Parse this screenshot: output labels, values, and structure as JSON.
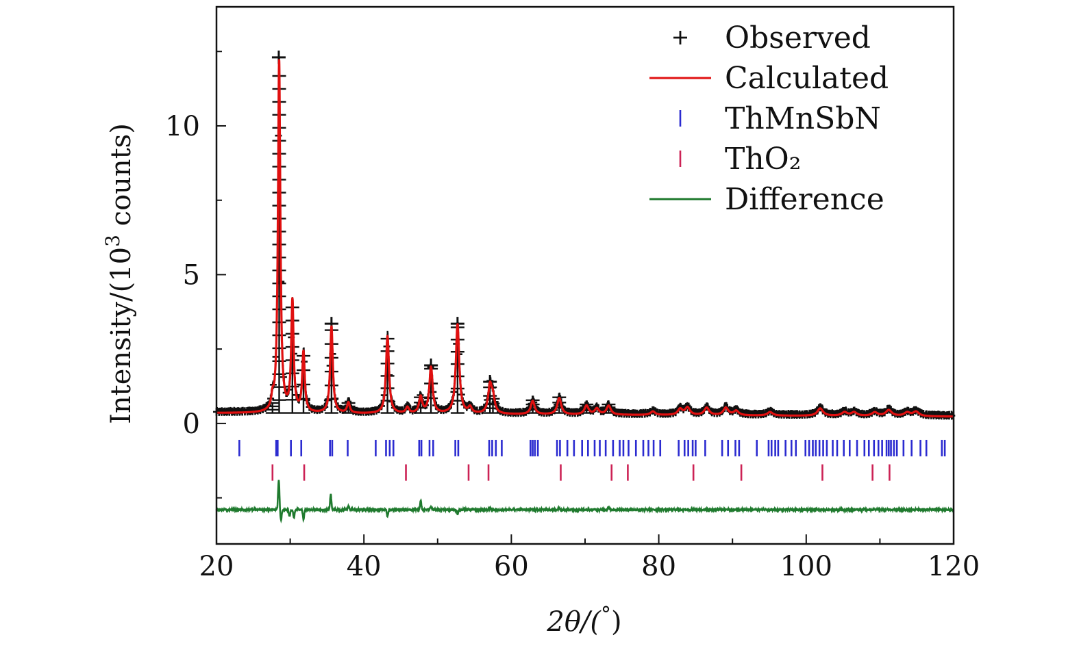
{
  "chart_data": {
    "type": "line",
    "title": "",
    "xlabel": {
      "main": "2θ/(",
      "unit": "°",
      "close": ")"
    },
    "ylabel": {
      "pre": "Intensity/(10",
      "sup": "3",
      "post": " counts)"
    },
    "xlim": [
      20,
      120
    ],
    "ylim": [
      -4.05,
      14.0
    ],
    "xticks": [
      20,
      40,
      60,
      80,
      100,
      120
    ],
    "yticks": [
      0,
      5,
      10
    ],
    "xtick_labels": [
      "20",
      "40",
      "60",
      "80",
      "100",
      "120"
    ],
    "ytick_labels": [
      "0",
      "5",
      "10"
    ],
    "background": 0.35,
    "peaks": [
      {
        "x": 27.6,
        "h": 0.35
      },
      {
        "x": 28.5,
        "h": 11.8
      },
      {
        "x": 30.3,
        "h": 3.7
      },
      {
        "x": 31.8,
        "h": 2.0
      },
      {
        "x": 35.6,
        "h": 2.9
      },
      {
        "x": 37.9,
        "h": 0.35
      },
      {
        "x": 43.2,
        "h": 2.6
      },
      {
        "x": 45.9,
        "h": 0.2
      },
      {
        "x": 47.7,
        "h": 0.55
      },
      {
        "x": 49.1,
        "h": 1.55
      },
      {
        "x": 52.7,
        "h": 3.0
      },
      {
        "x": 54.4,
        "h": 0.2
      },
      {
        "x": 57.1,
        "h": 0.9
      },
      {
        "x": 57.5,
        "h": 0.5
      },
      {
        "x": 62.9,
        "h": 0.45
      },
      {
        "x": 66.5,
        "h": 0.55
      },
      {
        "x": 70.2,
        "h": 0.3
      },
      {
        "x": 71.6,
        "h": 0.2
      },
      {
        "x": 73.2,
        "h": 0.3
      },
      {
        "x": 79.2,
        "h": 0.12
      },
      {
        "x": 82.9,
        "h": 0.2
      },
      {
        "x": 83.9,
        "h": 0.25
      },
      {
        "x": 86.5,
        "h": 0.25
      },
      {
        "x": 89.1,
        "h": 0.25
      },
      {
        "x": 90.5,
        "h": 0.15
      },
      {
        "x": 95.1,
        "h": 0.12
      },
      {
        "x": 101.9,
        "h": 0.25
      },
      {
        "x": 105.2,
        "h": 0.12
      },
      {
        "x": 106.5,
        "h": 0.12
      },
      {
        "x": 109.3,
        "h": 0.12
      },
      {
        "x": 111.2,
        "h": 0.2
      },
      {
        "x": 113.7,
        "h": 0.12
      },
      {
        "x": 114.9,
        "h": 0.15
      }
    ],
    "observed_labels": [
      {
        "x": 28.45,
        "y": 12.3
      },
      {
        "x": 35.6,
        "y": 3.35
      },
      {
        "x": 52.7,
        "y": 3.35
      },
      {
        "x": 49.1,
        "y": 1.95
      },
      {
        "x": 57.1,
        "y": 1.4
      }
    ],
    "reflections": [
      {
        "name": "ThMnSbN",
        "color": "#2b2bd0",
        "y": -0.83,
        "positions": [
          23.1,
          28.1,
          28.3,
          30.1,
          31.5,
          35.4,
          35.7,
          37.8,
          41.6,
          43.0,
          43.5,
          44.0,
          47.5,
          47.8,
          48.9,
          49.4,
          52.4,
          52.8,
          57.0,
          57.4,
          57.9,
          58.7,
          62.6,
          62.9,
          63.2,
          63.6,
          66.2,
          66.6,
          67.6,
          68.5,
          69.6,
          70.4,
          71.3,
          72.0,
          72.8,
          73.8,
          74.7,
          75.2,
          75.9,
          76.9,
          77.9,
          78.6,
          79.3,
          80.2,
          82.7,
          83.5,
          84.0,
          84.6,
          85.0,
          86.3,
          88.6,
          89.4,
          90.4,
          90.9,
          93.3,
          94.9,
          95.3,
          95.8,
          96.2,
          97.2,
          98.0,
          98.6,
          99.9,
          100.4,
          100.9,
          101.3,
          101.8,
          102.3,
          102.8,
          103.6,
          104.2,
          105.1,
          105.9,
          106.9,
          107.9,
          108.5,
          109.2,
          109.8,
          110.3,
          110.9,
          111.2,
          111.5,
          111.9,
          112.3,
          113.2,
          114.3,
          115.5,
          116.3,
          118.4,
          118.8
        ]
      },
      {
        "name": "ThO₂",
        "color": "#cc2255",
        "y": -1.65,
        "positions": [
          27.6,
          31.9,
          45.7,
          54.2,
          56.9,
          66.7,
          73.6,
          75.8,
          84.7,
          91.2,
          102.2,
          109.0,
          111.3
        ]
      }
    ],
    "difference": {
      "offset": -2.9,
      "spikes": [
        {
          "x": 28.45,
          "d": 1.0
        },
        {
          "x": 28.75,
          "d": -0.35
        },
        {
          "x": 29.9,
          "d": -0.22
        },
        {
          "x": 30.5,
          "d": -0.28
        },
        {
          "x": 31.8,
          "d": -0.32
        },
        {
          "x": 35.5,
          "d": 0.52
        },
        {
          "x": 37.9,
          "d": 0.12
        },
        {
          "x": 43.2,
          "d": -0.22
        },
        {
          "x": 47.7,
          "d": 0.3
        },
        {
          "x": 49.1,
          "d": 0.12
        },
        {
          "x": 52.7,
          "d": -0.15
        },
        {
          "x": 57.2,
          "d": 0.06
        },
        {
          "x": 66.5,
          "d": 0.05
        },
        {
          "x": 73.2,
          "d": 0.08
        }
      ]
    },
    "legend": {
      "position": "top-right",
      "entries": [
        {
          "label": "Observed",
          "symbol": "plus",
          "color": "#111111"
        },
        {
          "label": "Calculated",
          "symbol": "line",
          "color": "#e01010"
        },
        {
          "label": "ThMnSbN",
          "symbol": "tick",
          "color": "#2b2bd0"
        },
        {
          "label": "ThO₂",
          "symbol": "tick",
          "color": "#cc2255"
        },
        {
          "label": "Difference",
          "symbol": "line",
          "color": "#1f7a2e"
        }
      ]
    },
    "colors": {
      "observed": "#111111",
      "calculated": "#e01010",
      "difference": "#1f7a2e",
      "axes": "#111111"
    }
  }
}
